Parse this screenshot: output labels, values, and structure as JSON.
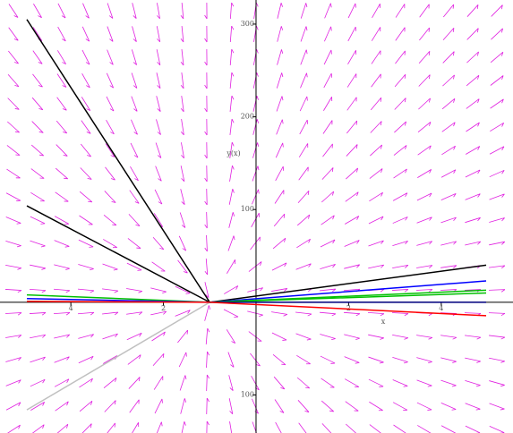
{
  "chart_data": {
    "type": "line",
    "x_label": "x",
    "y_label": "y(x)",
    "xlim": [
      -5.53,
      5.55
    ],
    "ylim": [
      -141,
      326
    ],
    "xticks": [
      {
        "value": -4,
        "label": "4"
      },
      {
        "value": -2,
        "label": "2"
      },
      2,
      4
    ],
    "yticks": [
      {
        "value": -100,
        "label": "100"
      },
      100,
      200,
      300
    ],
    "field_color": "#e020e0",
    "series": [
      {
        "color": "#000000",
        "x": [
          -4.95,
          -1
        ],
        "values": [
          305,
          0
        ]
      },
      {
        "color": "#000000",
        "x": [
          -4.95,
          -1
        ],
        "values": [
          104,
          0
        ]
      },
      {
        "color": "#c0c0c0",
        "x": [
          -4.95,
          -1
        ],
        "values": [
          -116,
          0
        ]
      },
      {
        "color": "#00c000",
        "x": [
          -4.95,
          -1
        ],
        "values": [
          8,
          0
        ]
      },
      {
        "color": "#0000ff",
        "x": [
          -4.95,
          -1
        ],
        "values": [
          4,
          0
        ]
      },
      {
        "color": "#ff0000",
        "x": [
          -4.95,
          -1
        ],
        "values": [
          1,
          0
        ]
      },
      {
        "color": "#000000",
        "x": [
          -1,
          4.97
        ],
        "values": [
          0,
          40
        ]
      },
      {
        "color": "#0000ff",
        "x": [
          -1,
          4.97
        ],
        "values": [
          0,
          23
        ]
      },
      {
        "color": "#00c000",
        "x": [
          -1,
          4.97
        ],
        "values": [
          0,
          13
        ]
      },
      {
        "color": "#00c000",
        "x": [
          -1,
          4.97
        ],
        "values": [
          0,
          10
        ]
      },
      {
        "color": "#000080",
        "x": [
          -1,
          4.97
        ],
        "values": [
          0,
          0
        ]
      },
      {
        "color": "#ff0000",
        "x": [
          -1,
          4.97
        ],
        "values": [
          0,
          -14.5
        ]
      }
    ]
  }
}
